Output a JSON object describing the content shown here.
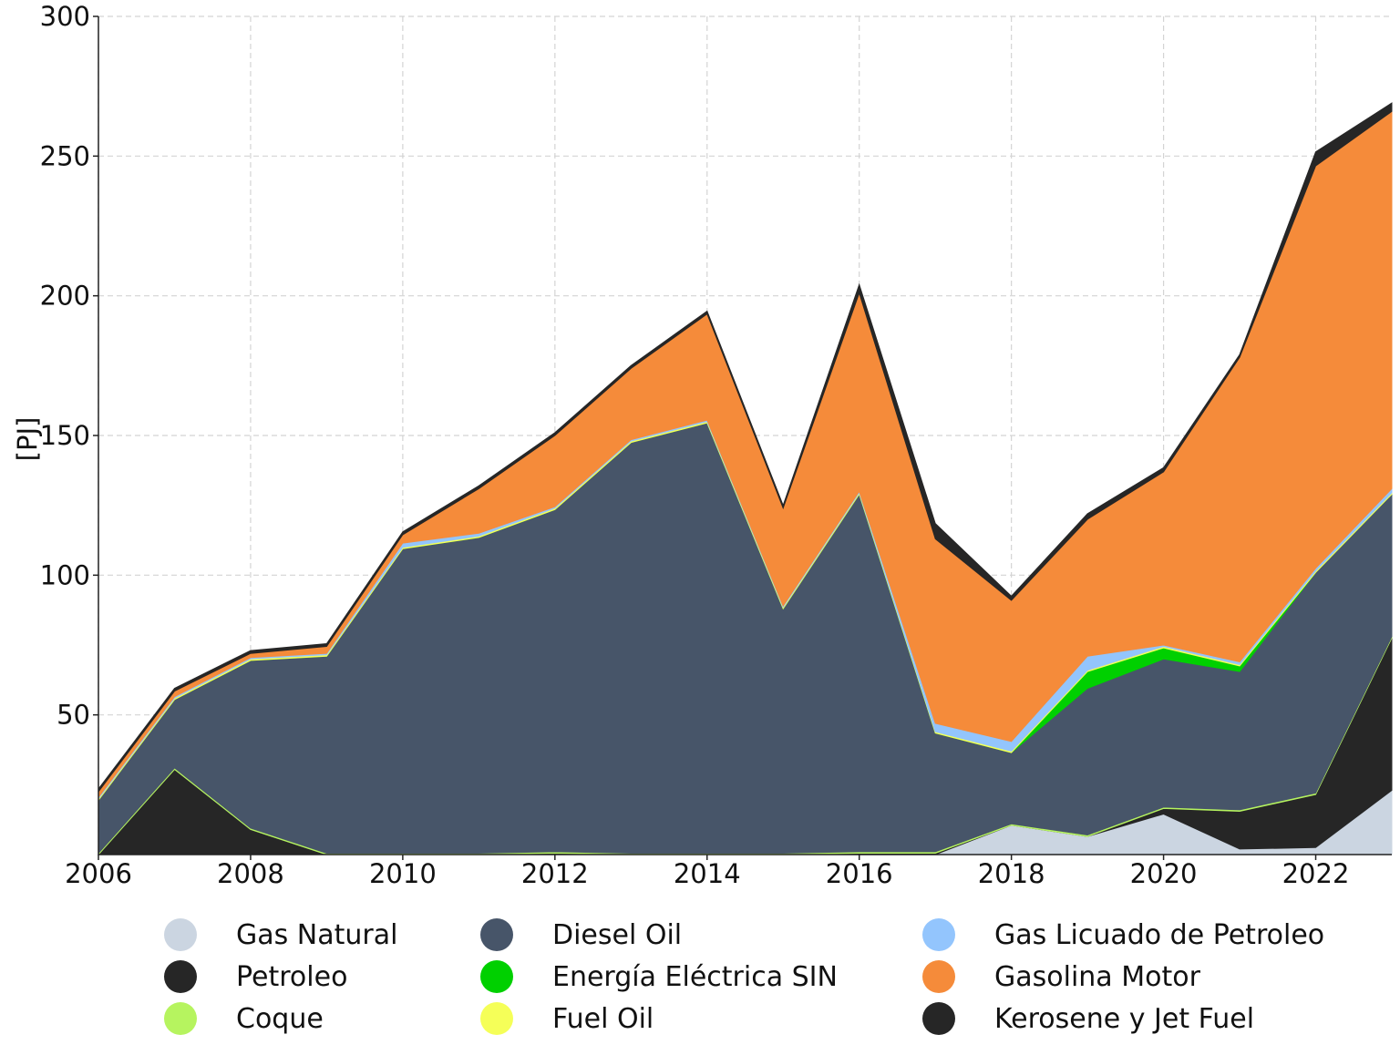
{
  "chart_data": {
    "type": "area",
    "stacked": true,
    "ylabel": "[PJ]",
    "xlabel": "",
    "xlim": [
      2006,
      2023
    ],
    "ylim": [
      0,
      300
    ],
    "x_ticks": [
      "2006",
      "2008",
      "2010",
      "2012",
      "2014",
      "2016",
      "2018",
      "2020",
      "2022"
    ],
    "y_ticks": [
      "50",
      "100",
      "150",
      "200",
      "250",
      "300"
    ],
    "grid": true,
    "legend_position": "bottom",
    "x": [
      2006,
      2007,
      2008,
      2009,
      2010,
      2011,
      2012,
      2013,
      2014,
      2015,
      2016,
      2017,
      2018,
      2019,
      2020,
      2021,
      2022,
      2023
    ],
    "series": [
      {
        "name": "Gas Natural",
        "color": "#cbd5e1",
        "values": [
          0,
          0,
          0,
          0,
          0,
          0,
          0,
          0,
          0,
          0,
          0,
          0,
          10.5,
          6.5,
          14.5,
          2,
          2.5,
          23
        ]
      },
      {
        "name": "Petroleo",
        "color": "#262626",
        "values": [
          0,
          30.5,
          9,
          0,
          0,
          0,
          0.5,
          0,
          0,
          0,
          0.5,
          0.5,
          0,
          0,
          2,
          13.5,
          19,
          54.5
        ]
      },
      {
        "name": "Coque",
        "color": "#b6f45f",
        "values": [
          0.5,
          0.5,
          0.5,
          0.5,
          0.5,
          0.5,
          0.5,
          0.5,
          0.5,
          0.5,
          0.5,
          0.5,
          0.5,
          0.5,
          0.5,
          0.5,
          0.5,
          0.5
        ]
      },
      {
        "name": "Diesel Oil",
        "color": "#475569",
        "values": [
          19,
          24.5,
          60,
          70.5,
          109,
          113,
          122.5,
          147,
          154,
          87.5,
          128,
          42.5,
          25.5,
          52.5,
          53,
          49.5,
          79,
          51
        ]
      },
      {
        "name": "Energía Eléctrica SIN",
        "color": "#00d000",
        "values": [
          0,
          0,
          0,
          0,
          0,
          0,
          0,
          0,
          0,
          0,
          0,
          0,
          0,
          6,
          4,
          2,
          0,
          0
        ]
      },
      {
        "name": "Fuel Oil",
        "color": "#f5ff58",
        "values": [
          0.5,
          0.5,
          0.5,
          0.5,
          0.5,
          0.5,
          0.5,
          0.5,
          0.5,
          0.5,
          0.5,
          0.5,
          0.5,
          0.5,
          0.5,
          0.5,
          0.5,
          0.5
        ]
      },
      {
        "name": "Gas Licuado de Petroleo",
        "color": "#93c5fd",
        "values": [
          0.5,
          0.5,
          0.5,
          0.5,
          1.5,
          1,
          0.5,
          0.5,
          0.5,
          0.5,
          0.5,
          3,
          3.5,
          5,
          0.5,
          1,
          1,
          1.5
        ]
      },
      {
        "name": "Gasolina Motor",
        "color": "#f58b3a",
        "values": [
          2,
          2,
          1.5,
          2.5,
          3,
          16,
          25.5,
          25.5,
          38,
          35,
          71,
          66,
          50.5,
          49,
          62,
          109,
          144,
          135
        ]
      },
      {
        "name": "Kerosene y Jet Fuel",
        "color": "#262626",
        "values": [
          1,
          1,
          1,
          1,
          1,
          1,
          1,
          1,
          1,
          1,
          3,
          5.5,
          1.5,
          2,
          1.5,
          1,
          5,
          3
        ]
      }
    ]
  }
}
